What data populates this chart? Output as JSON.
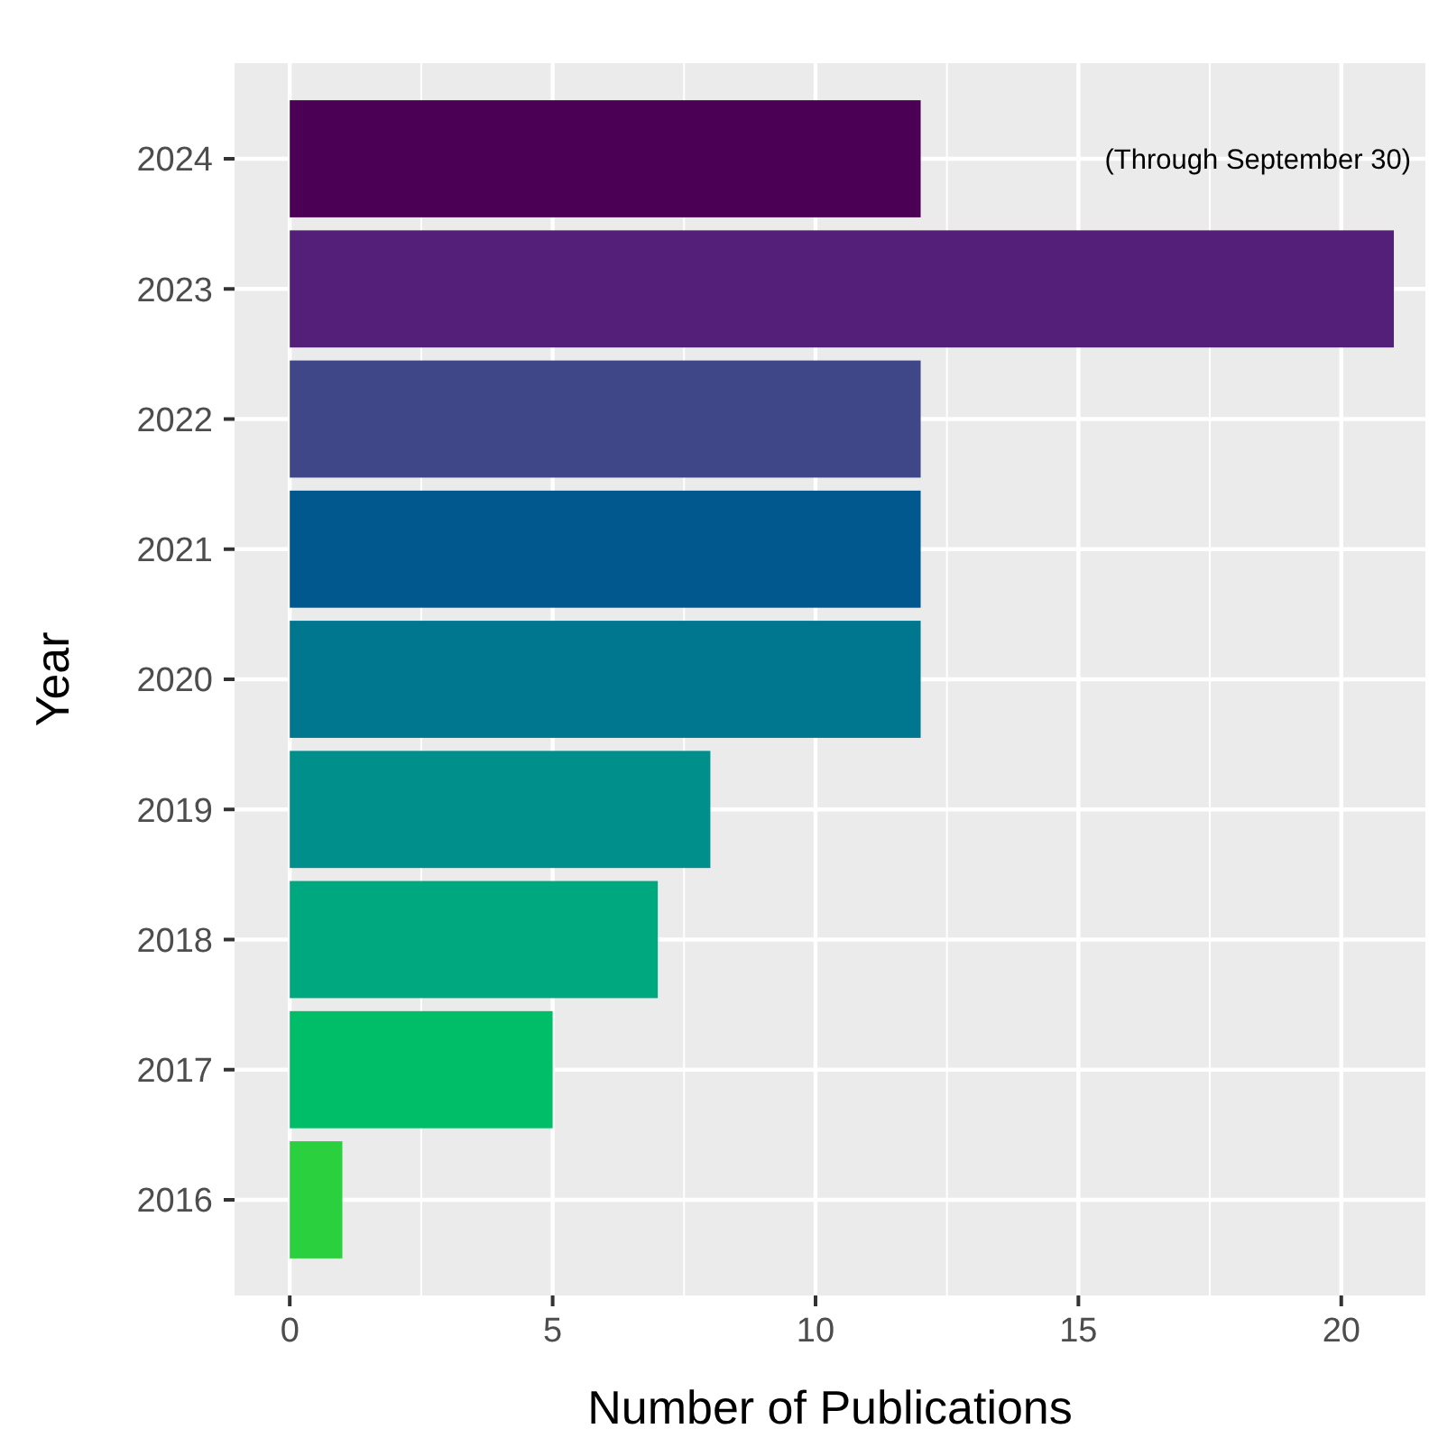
{
  "chart_data": {
    "type": "bar",
    "orientation": "horizontal",
    "xlabel": "Number of Publications",
    "ylabel": "Year",
    "categories": [
      "2024",
      "2023",
      "2022",
      "2021",
      "2020",
      "2019",
      "2018",
      "2017",
      "2016"
    ],
    "values": [
      12,
      21,
      12,
      12,
      12,
      8,
      7,
      5,
      1
    ],
    "colors": [
      "#4b0055",
      "#541f78",
      "#3f4788",
      "#00588e",
      "#00778e",
      "#008f8b",
      "#00a87f",
      "#00be68",
      "#2bd03e"
    ],
    "xlim": [
      -1.05,
      21.6
    ],
    "xticks": [
      0,
      5,
      10,
      15,
      20
    ],
    "grid": true,
    "annotations": [
      "(Through September 30)"
    ]
  }
}
